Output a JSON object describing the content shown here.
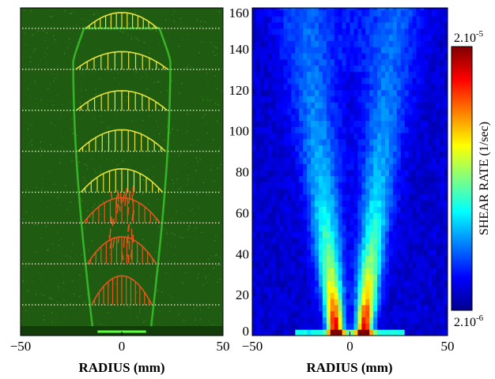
{
  "chart_data": [
    {
      "type": "scatter",
      "panel": "left",
      "description_kind": "velocity-vector image",
      "xlabel": "RADIUS (mm)",
      "xlim": [
        -50,
        50
      ],
      "xticks": [
        -50,
        0,
        50
      ],
      "ylim": [
        0,
        160
      ],
      "grid": false,
      "colors": {
        "background": "#1f5c12",
        "plume": "#39c42a",
        "vectors_upper": "#e8e23a",
        "vectors_lower": "#e8551c",
        "dots": "#e6e6c8"
      },
      "profile_levels": [
        150,
        130,
        110,
        90,
        70,
        55,
        35,
        15
      ]
    },
    {
      "type": "heatmap",
      "panel": "right",
      "xlabel": "RADIUS (mm)",
      "xlim": [
        -50,
        50
      ],
      "xticks": [
        -50,
        0,
        50
      ],
      "ylim": [
        0,
        160
      ],
      "yticks": [
        0,
        20,
        40,
        60,
        80,
        100,
        120,
        140,
        160
      ],
      "grid": false,
      "colorbar": {
        "label": "SHEAR RATE   (1/sec)",
        "max_label": "2.10",
        "max_exp": "-5",
        "min_label": "2.10",
        "min_exp": "-6",
        "colormap": "jet",
        "range": [
          2e-06,
          2e-05
        ]
      }
    }
  ]
}
